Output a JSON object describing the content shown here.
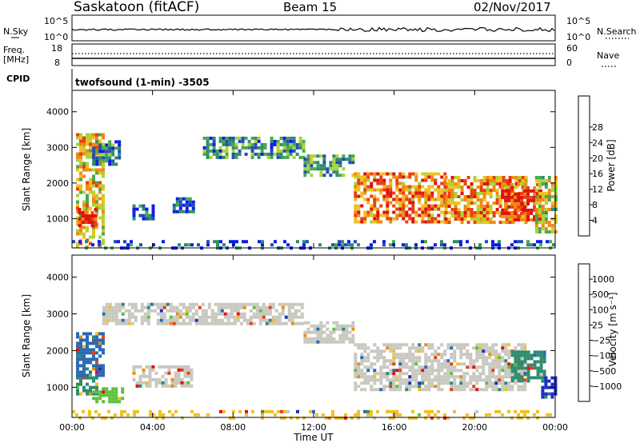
{
  "header": {
    "station": "Saskatoon (fitACF)",
    "beam": "Beam 15",
    "date": "02/Nov/2017"
  },
  "top_strip": {
    "left_label": "N.Sky",
    "left_top_tick": "10^5",
    "left_bottom_tick": "10^0",
    "right_label": "N.Search",
    "right_top_tick": "10^5",
    "right_bottom_tick": "10^0"
  },
  "freq_strip": {
    "left_label_line1": "Freq.",
    "left_label_line2": "[MHz]",
    "left_top_tick": "18",
    "left_bottom_tick": "8",
    "right_label": "Nave",
    "right_top_tick": "60",
    "right_bottom_tick": "0"
  },
  "cpid": {
    "label": "CPID",
    "value": "twofsound (1-min) -3505"
  },
  "chart_data": [
    {
      "type": "heatmap",
      "panel": "power",
      "ylabel": "Slant Range [km]",
      "yticks": [
        1000,
        2000,
        3000,
        4000
      ],
      "ylim": [
        180,
        4600
      ],
      "xlim": [
        0,
        24
      ],
      "colorbar_label": "Power [dB]",
      "colorbar_ticks": [
        "4",
        "8",
        "12",
        "16",
        "20",
        "24",
        "28"
      ],
      "colorscale": [
        "#0a1de8",
        "#1f4fb3",
        "#2e8b6e",
        "#4aa84a",
        "#a8d43a",
        "#f0c020",
        "#f08a10",
        "#e84010",
        "#e01010"
      ],
      "regions": [
        {
          "t0": 0.2,
          "t1": 1.6,
          "r0": 250,
          "r1": 3400,
          "level": 0.6
        },
        {
          "t0": 0.3,
          "t1": 1.2,
          "r0": 800,
          "r1": 1300,
          "level": 0.85
        },
        {
          "t0": 1.0,
          "t1": 2.3,
          "r0": 2500,
          "r1": 3200,
          "level": 0.25
        },
        {
          "t0": 3.0,
          "t1": 4.0,
          "r0": 1000,
          "r1": 1400,
          "level": 0.15
        },
        {
          "t0": 5.0,
          "t1": 6.0,
          "r0": 1200,
          "r1": 1600,
          "level": 0.2
        },
        {
          "t0": 6.5,
          "t1": 11.5,
          "r0": 2700,
          "r1": 3300,
          "level": 0.3
        },
        {
          "t0": 11.5,
          "t1": 14.0,
          "r0": 2200,
          "r1": 2800,
          "level": 0.35
        },
        {
          "t0": 14.0,
          "t1": 18.5,
          "r0": 900,
          "r1": 2300,
          "level": 0.75
        },
        {
          "t0": 18.5,
          "t1": 22.5,
          "r0": 900,
          "r1": 2200,
          "level": 0.7
        },
        {
          "t0": 21.3,
          "t1": 23.3,
          "r0": 1000,
          "r1": 2000,
          "level": 0.9
        },
        {
          "t0": 23.0,
          "t1": 24.0,
          "r0": 600,
          "r1": 2200,
          "level": 0.55
        },
        {
          "t0": 0.0,
          "t1": 24.0,
          "r0": 200,
          "r1": 400,
          "level": 0.15
        }
      ]
    },
    {
      "type": "heatmap",
      "panel": "velocity",
      "ylabel": "Slant Range [km]",
      "yticks": [
        1000,
        2000,
        3000,
        4000
      ],
      "ylim": [
        180,
        4600
      ],
      "xlim": [
        0,
        24
      ],
      "xticks": [
        "00:00",
        "04:00",
        "08:00",
        "12:00",
        "16:00",
        "20:00",
        "00:00"
      ],
      "xlabel": "Time UT",
      "colorbar_label": "Velocity [m s⁻¹]",
      "colorbar_ticks": [
        "1000",
        "500",
        "100",
        "25",
        "−25",
        "−100",
        "−500",
        "−1000"
      ],
      "colorscale": [
        "#1a2fc0",
        "#2a6ab0",
        "#2e8b6e",
        "#5cc03a",
        "#c8c8c0",
        "#f0c020",
        "#f08a10",
        "#e84010",
        "#e01010"
      ],
      "ground_scatter_color": "#c8c8c0",
      "regions": [
        {
          "t0": 0.2,
          "t1": 1.2,
          "r0": 800,
          "r1": 1300,
          "color": "#2e8b6e"
        },
        {
          "t0": 0.2,
          "t1": 1.5,
          "r0": 1300,
          "r1": 2500,
          "color": "#2a6ab0"
        },
        {
          "t0": 1.0,
          "t1": 2.5,
          "r0": 600,
          "r1": 1000,
          "color": "#5cc03a"
        },
        {
          "t0": 1.5,
          "t1": 11.5,
          "r0": 2700,
          "r1": 3300,
          "color": "#c8c8c0"
        },
        {
          "t0": 3.0,
          "t1": 6.0,
          "r0": 1000,
          "r1": 1600,
          "color": "#c8c8c0"
        },
        {
          "t0": 11.5,
          "t1": 14.0,
          "r0": 2200,
          "r1": 2800,
          "color": "#c8c8c0"
        },
        {
          "t0": 14.0,
          "t1": 22.5,
          "r0": 900,
          "r1": 2200,
          "color": "#c8c8c0"
        },
        {
          "t0": 21.8,
          "t1": 23.5,
          "r0": 1200,
          "r1": 2000,
          "color": "#2e8b6e"
        },
        {
          "t0": 23.3,
          "t1": 24.0,
          "r0": 700,
          "r1": 1300,
          "color": "#1a2fc0"
        },
        {
          "t0": 0.0,
          "t1": 24.0,
          "r0": 200,
          "r1": 380,
          "color": "#f0c020"
        }
      ]
    }
  ]
}
